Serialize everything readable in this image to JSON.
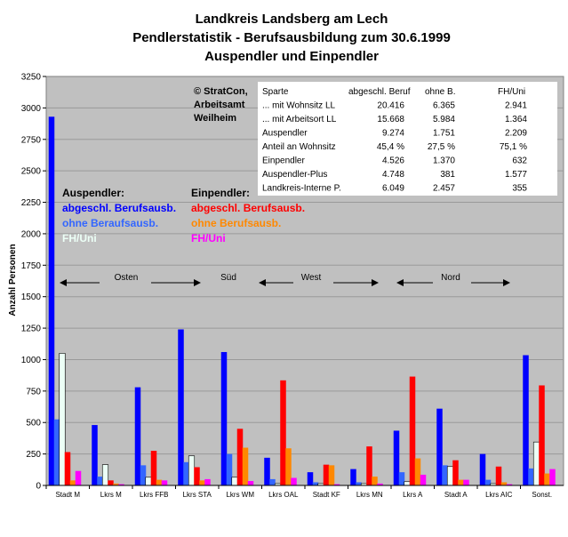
{
  "chart_data": {
    "type": "bar",
    "title": [
      "Landkreis Landsberg am Lech",
      "Pendlerstatistik - Berufsausbildung zum 30.6.1999",
      "Auspendler und Einpendler"
    ],
    "ylabel": "Anzahl Personen",
    "ylim": [
      0,
      3250
    ],
    "yticks": [
      "0",
      "250",
      "500",
      "750",
      "1000",
      "1250",
      "1500",
      "1750",
      "2000",
      "2250",
      "2500",
      "2750",
      "3000",
      "3250"
    ],
    "grid": true,
    "categories": [
      "Stadt M",
      "Lkrs M",
      "Lkrs FFB",
      "Lkrs STA",
      "Lkrs WM",
      "Lkrs OAL",
      "Stadt KF",
      "Lkrs MN",
      "Lkrs A",
      "Stadt A",
      "Lkrs AIC",
      "Sonst."
    ],
    "series": [
      {
        "name": "abgeschl. Berufsausb.",
        "group": "Auspendler",
        "color": "#0000ff",
        "values": [
          2930,
          480,
          780,
          1240,
          1060,
          220,
          105,
          130,
          435,
          610,
          250,
          1035
        ]
      },
      {
        "name": "ohne Beraufsausb.",
        "group": "Auspendler",
        "color": "#3366ff",
        "values": [
          525,
          70,
          160,
          185,
          250,
          50,
          25,
          25,
          105,
          160,
          45,
          135
        ]
      },
      {
        "name": "FH/Uni",
        "group": "Auspendler",
        "color": "#ecfff6",
        "values": [
          1050,
          165,
          65,
          235,
          65,
          15,
          15,
          15,
          30,
          150,
          15,
          345
        ]
      },
      {
        "name": "abgeschl. Berufsausb.",
        "group": "Einpendler",
        "color": "#ff0000",
        "values": [
          265,
          40,
          275,
          145,
          450,
          835,
          165,
          310,
          865,
          200,
          150,
          795
        ]
      },
      {
        "name": "ohne Berufsausb.",
        "group": "Einpendler",
        "color": "#ff8800",
        "values": [
          40,
          15,
          45,
          40,
          300,
          295,
          160,
          70,
          215,
          45,
          25,
          95
        ]
      },
      {
        "name": "FH/Uni",
        "group": "Einpendler",
        "color": "#ff00ff",
        "values": [
          115,
          10,
          40,
          50,
          35,
          60,
          10,
          15,
          85,
          45,
          10,
          130
        ]
      }
    ],
    "legend": {
      "auspendler_title": "Auspendler:",
      "einpendler_title": "Einpendler:"
    },
    "regions": [
      "Osten",
      "Süd",
      "West",
      "Nord"
    ],
    "copyright": [
      "© StratCon,",
      "Arbeitsamt",
      "Weilheim"
    ],
    "table": {
      "header": [
        "Sparte",
        "abgeschl. Beruf",
        "ohne B.",
        "FH/Uni"
      ],
      "rows": [
        [
          "... mit Wohnsitz LL",
          "20.416",
          "6.365",
          "2.941"
        ],
        [
          "... mit Arbeitsort LL",
          "15.668",
          "5.984",
          "1.364"
        ],
        [
          "Auspendler",
          "9.274",
          "1.751",
          "2.209"
        ],
        [
          "Anteil an Wohnsitz",
          "45,4 %",
          "27,5 %",
          "75,1 %"
        ],
        [
          "Einpendler",
          "4.526",
          "1.370",
          "632"
        ],
        [
          "Auspendler-Plus",
          "4.748",
          "381",
          "1.577"
        ],
        [
          "Landkreis-Interne P.",
          "6.049",
          "2.457",
          "355"
        ]
      ]
    }
  }
}
